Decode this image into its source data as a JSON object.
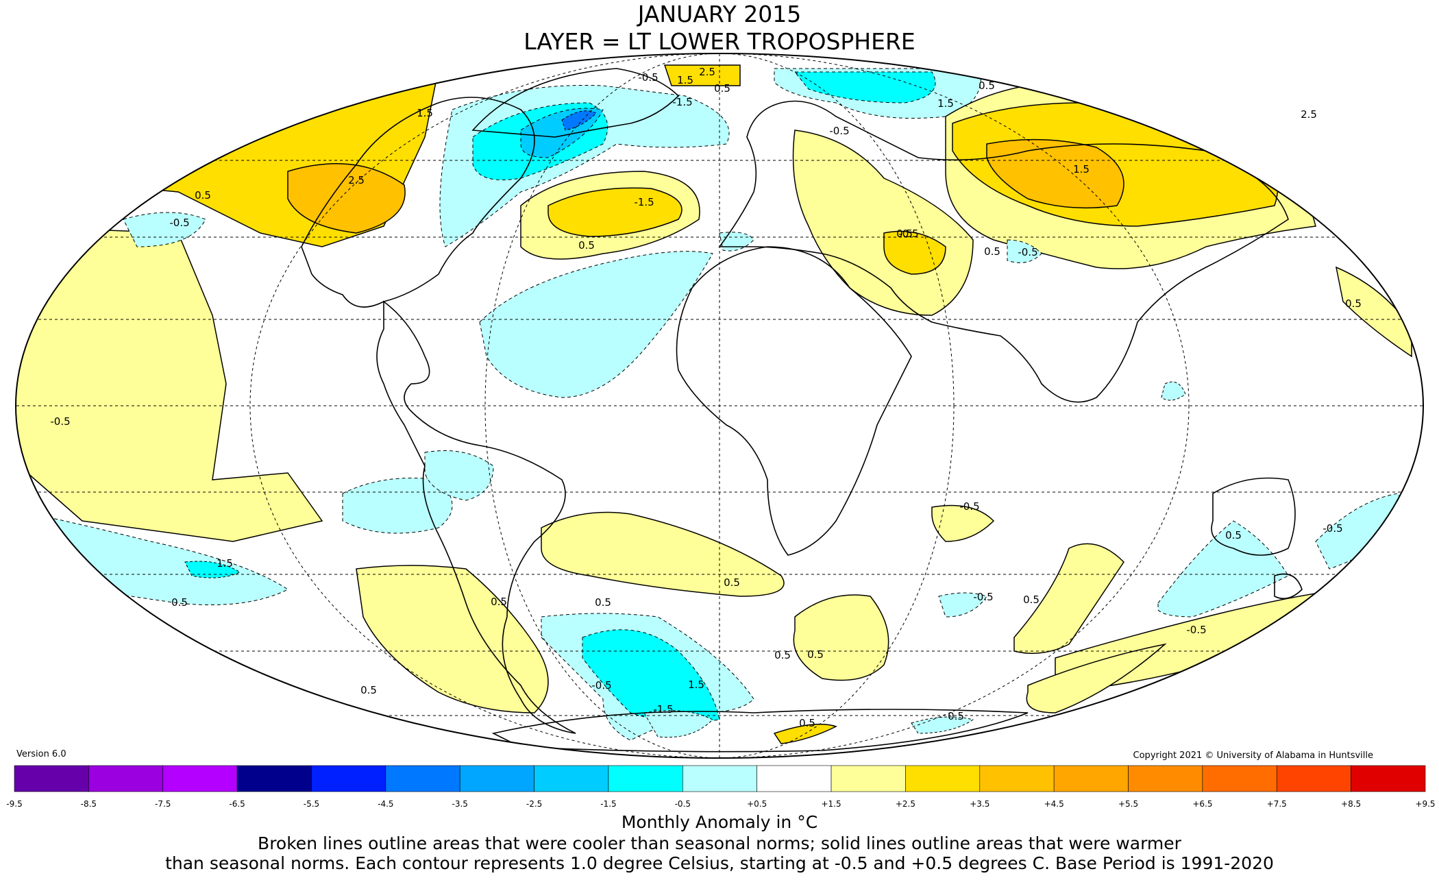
{
  "title": {
    "line1": "JANUARY 2015",
    "line2": "LAYER = LT LOWER TROPOSPHERE"
  },
  "version": "Version 6.0",
  "copyright": "Copyright 2021 © University of Alabama in Huntsville",
  "units_label": "Monthly Anomaly in °C",
  "note_line1": "Broken lines outline areas that were cooler than seasonal norms; solid lines outline areas that were warmer",
  "note_line2": "than seasonal norms. Each contour represents 1.0 degree Celsius, starting at -0.5 and +0.5 degrees C. Base Period is 1991-2020",
  "colorbar": {
    "ticks": [
      "-9.5",
      "-8.5",
      "-7.5",
      "-6.5",
      "-5.5",
      "-4.5",
      "-3.5",
      "-2.5",
      "-1.5",
      "-0.5",
      "+0.5",
      "+1.5",
      "+2.5",
      "+3.5",
      "+4.5",
      "+5.5",
      "+6.5",
      "+7.5",
      "+8.5",
      "+9.5"
    ],
    "colors": [
      "#3a0060",
      "#6600aa",
      "#9a00e0",
      "#b400ff",
      "#00008c",
      "#0020ff",
      "#0078ff",
      "#00a6ff",
      "#00ccff",
      "#00ffff",
      "#baffff",
      "#ffffff",
      "#ffff99",
      "#ffdf00",
      "#ffc100",
      "#ffa600",
      "#ff8c00",
      "#ff6d00",
      "#ff4400",
      "#e00000",
      "#c00000"
    ]
  },
  "contour_labels": [
    "2.5",
    "1.5",
    "0.5",
    "-0.5",
    "-1.5",
    "2.5",
    "1.5",
    "0.5",
    "-0.5",
    "2.5",
    "1.5",
    "0.5",
    "-0.5",
    "1.5",
    "0.5",
    "-1.5",
    "-0.5",
    "0.5",
    "-0.5",
    "0.5",
    "-0.5",
    "0.5",
    "1.5",
    "0.5",
    "0.5",
    "-0.5",
    "-0.5",
    "0.5",
    "0.5",
    "-1.5",
    "0.5",
    "0.5",
    "-0.5",
    "0.5",
    "-0.5",
    "-0.5",
    "0.5",
    "0.5",
    "1.5",
    "0.5",
    "0.5"
  ]
}
